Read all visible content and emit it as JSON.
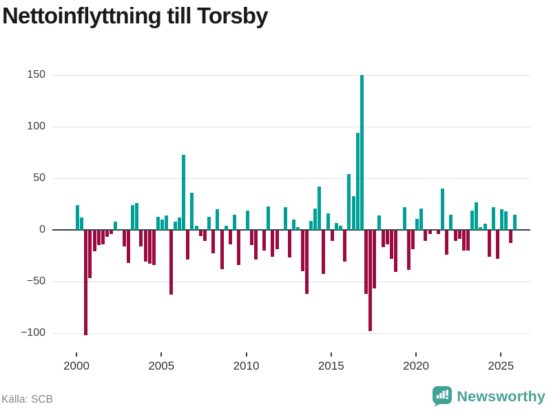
{
  "title": "Nettoinflyttning till Torsby",
  "source": "Källa: SCB",
  "branding": {
    "logo_text": "Newsworthy"
  },
  "colors": {
    "positive": "#00A097",
    "negative": "#9B0A41",
    "title": "#1A1A1A",
    "axis_line": "#3B4045",
    "gridline": "#E2E2E2",
    "tick": "#3C3C3C",
    "x_label": "#303030",
    "y_label": "#3D3D3D",
    "source_text": "#878787",
    "brand_teal": "#4AA296"
  },
  "chart_data": {
    "type": "bar",
    "title": "Nettoinflyttning till Torsby",
    "frequency": "quarterly",
    "x_range": [
      "2000 Q1",
      "2025 Q4"
    ],
    "xticks": [
      2000,
      2005,
      2010,
      2015,
      2020,
      2025
    ],
    "yticks": [
      150,
      100,
      50,
      0,
      -50,
      -100
    ],
    "ylim": [
      -119,
      166
    ],
    "grid": "horizontal",
    "legend": "none",
    "bar_colors": {
      "positive": "#00A097",
      "negative": "#9B0A41"
    },
    "series_by_year": [
      {
        "year": 2000,
        "values": [
          24,
          12,
          -101,
          -46
        ]
      },
      {
        "year": 2001,
        "values": [
          -20,
          -14,
          -13,
          -6
        ]
      },
      {
        "year": 2002,
        "values": [
          -3,
          8,
          0,
          -15
        ]
      },
      {
        "year": 2003,
        "values": [
          -31,
          24,
          26,
          -15
        ]
      },
      {
        "year": 2004,
        "values": [
          -30,
          -32,
          -33,
          13
        ]
      },
      {
        "year": 2005,
        "values": [
          10,
          14,
          -62,
          8
        ]
      },
      {
        "year": 2006,
        "values": [
          12,
          73,
          -28,
          36
        ]
      },
      {
        "year": 2007,
        "values": [
          4,
          -5,
          -10,
          13
        ]
      },
      {
        "year": 2008,
        "values": [
          -22,
          20,
          -37,
          4
        ]
      },
      {
        "year": 2009,
        "values": [
          -13,
          15,
          -33,
          0
        ]
      },
      {
        "year": 2010,
        "values": [
          19,
          -14,
          -28,
          0
        ]
      },
      {
        "year": 2011,
        "values": [
          -19,
          23,
          -25,
          -18
        ]
      },
      {
        "year": 2012,
        "values": [
          0,
          22,
          -26,
          10
        ]
      },
      {
        "year": 2013,
        "values": [
          3,
          -39,
          -61,
          9
        ]
      },
      {
        "year": 2014,
        "values": [
          21,
          42,
          -42,
          16
        ]
      },
      {
        "year": 2015,
        "values": [
          -10,
          7,
          4,
          -30
        ]
      },
      {
        "year": 2016,
        "values": [
          54,
          33,
          94,
          150
        ]
      },
      {
        "year": 2017,
        "values": [
          -61,
          -97,
          -56,
          14
        ]
      },
      {
        "year": 2018,
        "values": [
          -16,
          -13,
          -27,
          -40
        ]
      },
      {
        "year": 2019,
        "values": [
          0,
          22,
          -38,
          -18
        ]
      },
      {
        "year": 2020,
        "values": [
          11,
          21,
          -10,
          -3
        ]
      },
      {
        "year": 2021,
        "values": [
          0,
          -3,
          40,
          -23
        ]
      },
      {
        "year": 2022,
        "values": [
          15,
          -10,
          -8,
          -19
        ]
      },
      {
        "year": 2023,
        "values": [
          -19,
          19,
          27,
          3
        ]
      },
      {
        "year": 2024,
        "values": [
          6,
          -25,
          22,
          -27
        ]
      },
      {
        "year": 2025,
        "values": [
          20,
          18,
          -12,
          15
        ]
      }
    ]
  }
}
